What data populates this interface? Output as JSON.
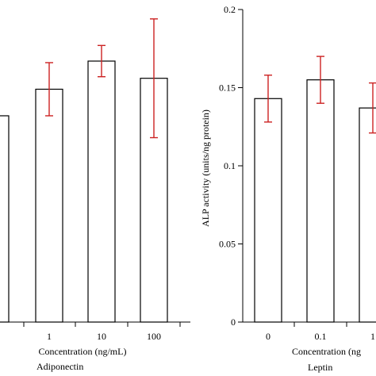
{
  "colors": {
    "bar_fill": "#ffffff",
    "bar_stroke": "#000000",
    "error_bar": "#cc2222",
    "axis": "#000000"
  },
  "chart_data": [
    {
      "type": "bar",
      "title": "",
      "subtitle": "Adiponectin",
      "xlabel": "Concentration (ng/mL)",
      "ylabel": "",
      "ylim": [
        0,
        0.2
      ],
      "categories": [
        "",
        "1",
        "10",
        "100"
      ],
      "series": [
        {
          "values": [
            0.132,
            0.149,
            0.167,
            0.156
          ],
          "errors": [
            0,
            0.017,
            0.01,
            0.038
          ]
        }
      ],
      "grid": false
    },
    {
      "type": "bar",
      "title": "",
      "subtitle": "Leptin",
      "xlabel": "Concentration (ng",
      "ylabel": "ALP activity (units/ng protein)",
      "ylim": [
        0,
        0.2
      ],
      "yticks": [
        "0",
        "0.05",
        "0.1",
        "0.15",
        "0.2"
      ],
      "categories": [
        "0",
        "0.1",
        "1"
      ],
      "series": [
        {
          "values": [
            0.143,
            0.155,
            0.137
          ],
          "errors": [
            0.015,
            0.015,
            0.016
          ]
        }
      ],
      "grid": false
    }
  ]
}
